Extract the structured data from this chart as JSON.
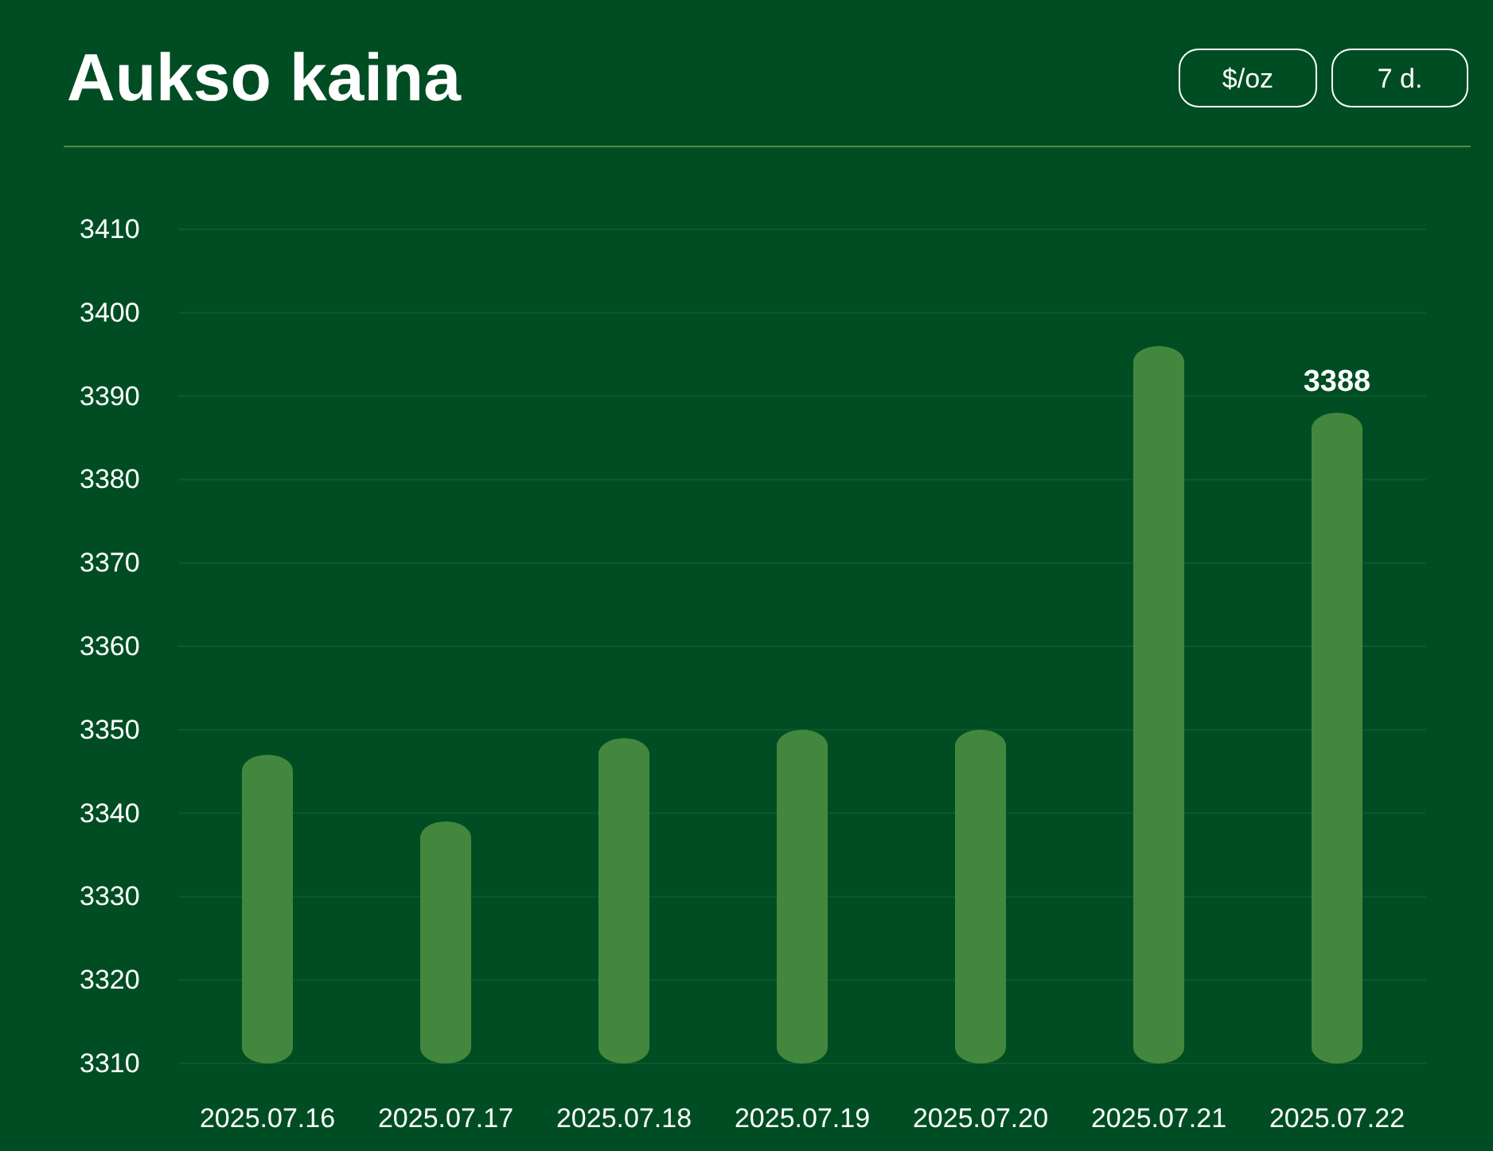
{
  "chart_data": {
    "type": "bar",
    "title": "Aukso kaina",
    "categories": [
      "2025.07.16",
      "2025.07.17",
      "2025.07.18",
      "2025.07.19",
      "2025.07.20",
      "2025.07.21",
      "2025.07.22"
    ],
    "values": [
      3347,
      3339,
      3349,
      3350,
      3350,
      3396,
      3388
    ],
    "value_labels": [
      null,
      null,
      null,
      null,
      null,
      null,
      "3388"
    ],
    "color": "#43873e",
    "ylim": [
      3310,
      3410
    ],
    "yticks": [
      3310,
      3320,
      3330,
      3340,
      3350,
      3360,
      3370,
      3380,
      3390,
      3400,
      3410
    ],
    "grid": "y",
    "annotations": [
      "$/oz",
      "7 d."
    ]
  }
}
